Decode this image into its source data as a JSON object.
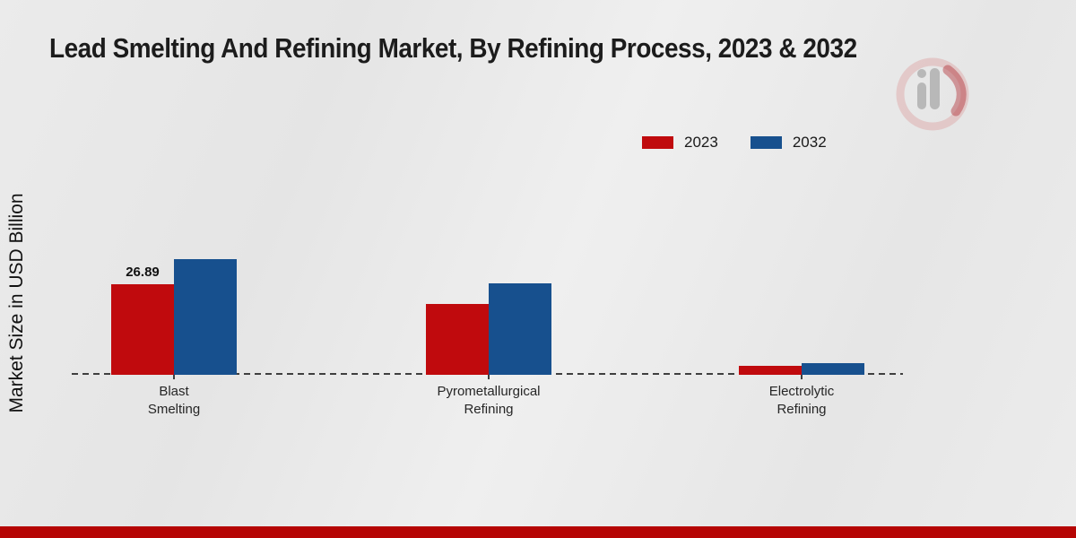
{
  "title": "Lead Smelting And Refining Market, By Refining Process, 2023 & 2032",
  "y_axis_label": "Market Size in USD Billion",
  "legend": {
    "items": [
      {
        "label": "2023",
        "color": "#c00a0d"
      },
      {
        "label": "2032",
        "color": "#17508e"
      }
    ]
  },
  "chart_data": {
    "type": "bar",
    "title": "Lead Smelting And Refining Market, By Refining Process, 2023 & 2032",
    "ylabel": "Market Size in USD Billion",
    "categories": [
      "Blast\nSmelting",
      "Pyrometallurgical\nRefining",
      "Electrolytic\nRefining"
    ],
    "series": [
      {
        "name": "2023",
        "color": "#c00a0d",
        "values": [
          26.89,
          21.0,
          2.7
        ]
      },
      {
        "name": "2032",
        "color": "#17508e",
        "values": [
          34.3,
          27.2,
          3.5
        ]
      }
    ],
    "data_labels": [
      [
        "26.89",
        "",
        ""
      ],
      [
        "",
        "",
        ""
      ]
    ],
    "ylim": [
      0,
      40
    ],
    "grid": false,
    "legend_position": "top-right",
    "baseline_style": "dashed"
  },
  "footer": {
    "accent_color": "#b50504"
  },
  "watermark_name": "market-research-future-logo"
}
